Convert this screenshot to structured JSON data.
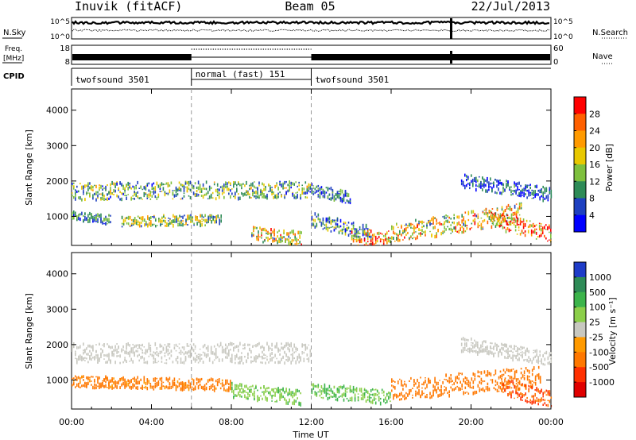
{
  "header": {
    "station": "Inuvik (fitACF)",
    "beam": "Beam 05",
    "date": "22/Jul/2013"
  },
  "status": {
    "nsky_label": "N.Sky",
    "nsearch_label": "N.Search",
    "nsky_scale": [
      "10^5",
      "10^0"
    ],
    "nsearch_scale": [
      "10^5",
      "10^0"
    ],
    "freq_label": [
      "Freq.",
      "[MHz]"
    ],
    "freq_scale": [
      "18",
      "8"
    ],
    "nave_label": "Nave",
    "nave_scale": [
      "60",
      "0"
    ],
    "cpid_label": "CPID",
    "cpid_segments": [
      {
        "label": "twofsound 3501",
        "start": 0,
        "end": 6
      },
      {
        "label": "normal (fast) 151",
        "start": 6,
        "end": 12
      },
      {
        "label": "twofsound 3501",
        "start": 12,
        "end": 24
      }
    ]
  },
  "chart_data": [
    {
      "type": "heatmap",
      "name": "power",
      "ylabel": "Slant Range [km]",
      "colorbar_label": "Power [dB]",
      "x_range_hours": [
        0,
        24
      ],
      "ylim": [
        180,
        4600
      ],
      "yticks": [
        1000,
        2000,
        3000,
        4000
      ],
      "colorbar_ticks": [
        "28",
        "24",
        "20",
        "16",
        "12",
        "8",
        "4"
      ],
      "colorbar_colors": [
        "#ff0000",
        "#ff6000",
        "#ff9a00",
        "#e8c800",
        "#7ec03e",
        "#2e8b57",
        "#1e40c0",
        "#0000ff"
      ],
      "dashed_lines_hours": [
        6,
        12
      ],
      "grid": false,
      "echo_bands": [
        {
          "t0": 0.0,
          "t1": 12.0,
          "center_start": 1700,
          "center_end": 1750,
          "width": 300,
          "value": 12
        },
        {
          "t0": 0.0,
          "t1": 2.0,
          "center_start": 1000,
          "center_end": 900,
          "width": 160,
          "value": 8
        },
        {
          "t0": 2.5,
          "t1": 7.5,
          "center_start": 850,
          "center_end": 900,
          "width": 180,
          "value": 14
        },
        {
          "t0": 9.0,
          "t1": 11.5,
          "center_start": 500,
          "center_end": 350,
          "width": 250,
          "value": 18
        },
        {
          "t0": 12.0,
          "t1": 14.0,
          "center_start": 1750,
          "center_end": 1500,
          "width": 200,
          "value": 8
        },
        {
          "t0": 12.0,
          "t1": 15.0,
          "center_start": 900,
          "center_end": 500,
          "width": 250,
          "value": 10
        },
        {
          "t0": 14.0,
          "t1": 16.0,
          "center_start": 350,
          "center_end": 350,
          "width": 300,
          "value": 24
        },
        {
          "t0": 16.0,
          "t1": 22.5,
          "center_start": 500,
          "center_end": 1100,
          "width": 350,
          "value": 18
        },
        {
          "t0": 21.0,
          "t1": 24.0,
          "center_start": 900,
          "center_end": 500,
          "width": 300,
          "value": 26
        },
        {
          "t0": 19.5,
          "t1": 24.0,
          "center_start": 2000,
          "center_end": 1600,
          "width": 250,
          "value": 6
        }
      ]
    },
    {
      "type": "heatmap",
      "name": "velocity",
      "ylabel": "Slant Range [km]",
      "xlabel": "Time UT",
      "colorbar_label": "Velocity [m s⁻¹]",
      "x_range_hours": [
        0,
        24
      ],
      "xticks": [
        "00:00",
        "04:00",
        "08:00",
        "12:00",
        "16:00",
        "20:00",
        "00:00"
      ],
      "ylim": [
        180,
        4600
      ],
      "yticks": [
        1000,
        2000,
        3000,
        4000
      ],
      "colorbar_ticks": [
        "1000",
        "500",
        "100",
        "25",
        "-25",
        "-100",
        "-500",
        "-1000"
      ],
      "colorbar_colors": [
        "#1e3cc8",
        "#2e8b57",
        "#3cb44b",
        "#8ccf4a",
        "#c8c8c0",
        "#ff9a00",
        "#ff7800",
        "#ff3000",
        "#e00000"
      ],
      "dashed_lines_hours": [
        6,
        12
      ],
      "grid": false,
      "echo_bands": [
        {
          "t0": 0.0,
          "t1": 12.0,
          "center_start": 1750,
          "center_end": 1750,
          "width": 350,
          "value": 0
        },
        {
          "t0": 0.0,
          "t1": 8.0,
          "center_start": 950,
          "center_end": 850,
          "width": 200,
          "value": -150
        },
        {
          "t0": 8.0,
          "t1": 11.5,
          "center_start": 700,
          "center_end": 500,
          "width": 250,
          "value": 50
        },
        {
          "t0": 12.0,
          "t1": 16.0,
          "center_start": 700,
          "center_end": 500,
          "width": 250,
          "value": 60
        },
        {
          "t0": 16.0,
          "t1": 23.5,
          "center_start": 700,
          "center_end": 1100,
          "width": 380,
          "value": -200
        },
        {
          "t0": 21.5,
          "t1": 24.0,
          "center_start": 800,
          "center_end": 450,
          "width": 300,
          "value": -300
        },
        {
          "t0": 19.5,
          "t1": 24.0,
          "center_start": 2000,
          "center_end": 1600,
          "width": 250,
          "value": 0
        }
      ]
    }
  ]
}
